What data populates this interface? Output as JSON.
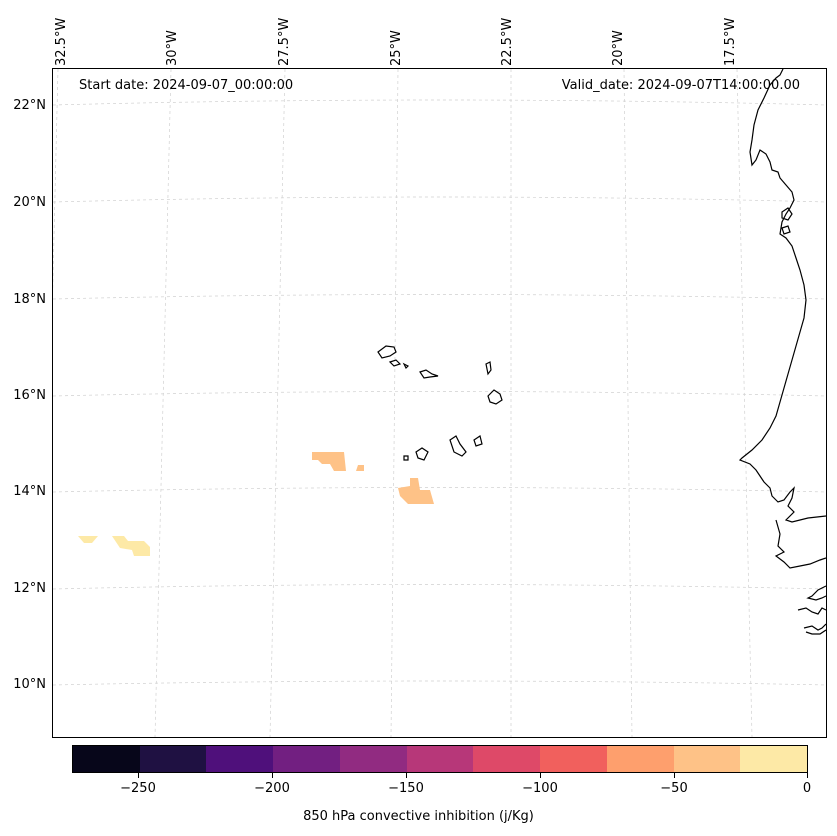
{
  "header": {
    "start_date": "Start date: 2024-09-07_00:00:00",
    "valid_date": "Valid_date: 2024-09-07T14:00:00.00"
  },
  "axes": {
    "lon_labels": [
      "32.5°W",
      "30°W",
      "27.5°W",
      "25°W",
      "22.5°W",
      "20°W",
      "17.5°W"
    ],
    "lat_labels": [
      "22°N",
      "20°N",
      "18°N",
      "16°N",
      "14°N",
      "12°N",
      "10°N"
    ]
  },
  "colorbar": {
    "title": "850 hPa convective inhibition (j/Kg)",
    "ticks": [
      "−250",
      "−200",
      "−150",
      "−100",
      "−50",
      "0"
    ],
    "colors": [
      "#07061a",
      "#1f1142",
      "#4f107b",
      "#721f81",
      "#912b81",
      "#b73779",
      "#de4968",
      "#f1605d",
      "#fe9f6d",
      "#fec287",
      "#fde9a6"
    ]
  },
  "shading": {
    "regions": [
      {
        "color": "#fec287",
        "value_range": "-50 to -25"
      },
      {
        "color": "#fde9a6",
        "value_range": "-25 to 0"
      }
    ]
  }
}
